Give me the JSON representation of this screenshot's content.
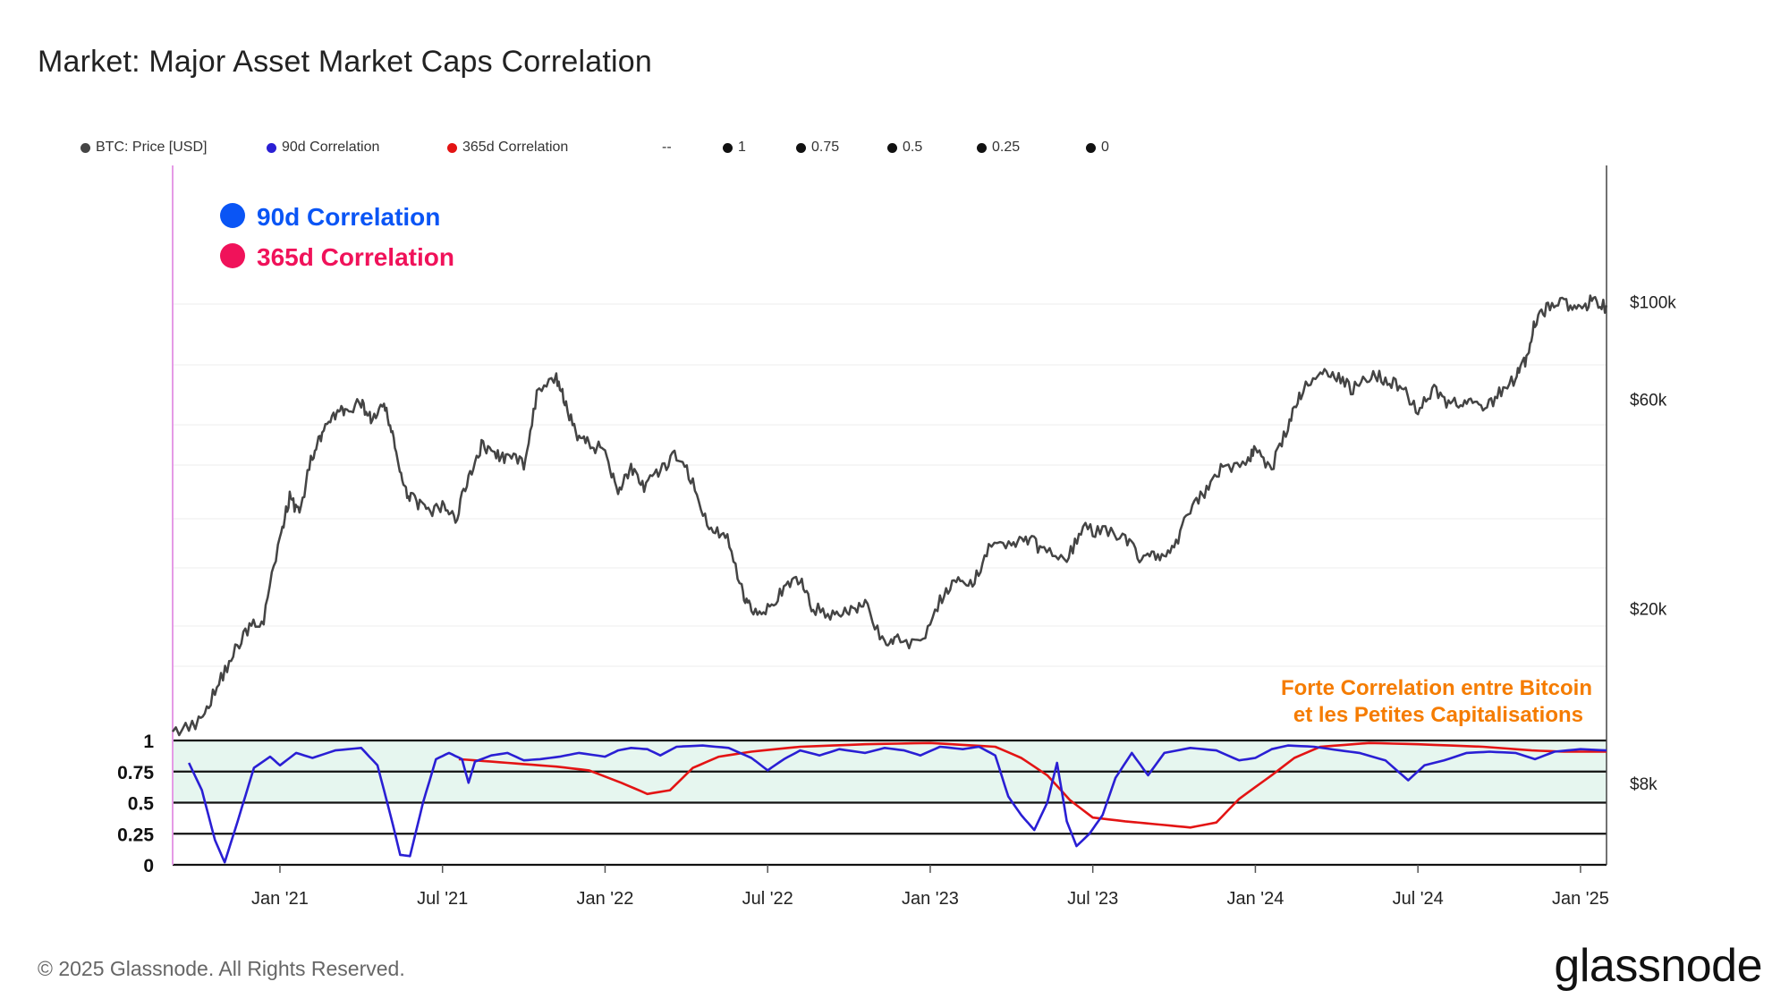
{
  "header": {
    "title": "Market: Major Asset Market Caps Correlation"
  },
  "legend": {
    "items": [
      {
        "label": "BTC: Price [USD]",
        "color": "#444444"
      },
      {
        "label": "90d Correlation",
        "color": "#2a1fd4"
      },
      {
        "label": "365d Correlation",
        "color": "#e31414"
      },
      {
        "label": "--",
        "color": ""
      },
      {
        "label": "1",
        "color": "#111111"
      },
      {
        "label": "0.75",
        "color": "#111111"
      },
      {
        "label": "0.5",
        "color": "#111111"
      },
      {
        "label": "0.25",
        "color": "#111111"
      },
      {
        "label": "0",
        "color": "#111111"
      }
    ]
  },
  "overlay_legend": [
    {
      "label": "90d Correlation",
      "color": "#0a55f5"
    },
    {
      "label": "365d Correlation",
      "color": "#f0125a"
    }
  ],
  "annotation": {
    "line1": "Forte Correlation entre Bitcoin",
    "line2": "et les Petites Capitalisations",
    "color": "#f57c00"
  },
  "footer": {
    "copyright": "© 2025 Glassnode. All Rights Reserved.",
    "brand": "glassnode"
  },
  "chart_data": {
    "type": "line",
    "title": "Market: Major Asset Market Caps Correlation",
    "x_ticks": [
      "Jan '21",
      "Jul '21",
      "Jan '22",
      "Jul '22",
      "Jan '23",
      "Jul '23",
      "Jan '24",
      "Jul '24",
      "Jan '25"
    ],
    "x_range": [
      2020.67,
      2025.08
    ],
    "y_right": {
      "scale": "log",
      "ticks": [
        "$100k",
        "$60k",
        "$20k",
        "$8k"
      ],
      "tick_values": [
        100000,
        60000,
        20000,
        8000
      ],
      "range": [
        7000,
        180000
      ]
    },
    "y_left": {
      "ticks": [
        "1",
        "0.75",
        "0.5",
        "0.25",
        "0"
      ],
      "tick_values": [
        1,
        0.75,
        0.5,
        0.25,
        0
      ],
      "range": [
        0,
        1
      ]
    },
    "high_correlation_band": [
      0.5,
      1.0
    ],
    "series": [
      {
        "name": "BTC: Price [USD]",
        "color": "#444444",
        "axis": "right",
        "points": [
          [
            2020.67,
            10500
          ],
          [
            2020.75,
            11000
          ],
          [
            2020.8,
            13000
          ],
          [
            2020.85,
            15500
          ],
          [
            2020.9,
            18000
          ],
          [
            2020.95,
            19000
          ],
          [
            2021.0,
            29000
          ],
          [
            2021.03,
            36000
          ],
          [
            2021.06,
            33000
          ],
          [
            2021.1,
            45000
          ],
          [
            2021.13,
            50000
          ],
          [
            2021.17,
            55000
          ],
          [
            2021.2,
            57000
          ],
          [
            2021.25,
            59000
          ],
          [
            2021.28,
            54000
          ],
          [
            2021.32,
            58000
          ],
          [
            2021.35,
            49000
          ],
          [
            2021.38,
            37000
          ],
          [
            2021.41,
            36000
          ],
          [
            2021.45,
            33000
          ],
          [
            2021.5,
            34000
          ],
          [
            2021.54,
            32000
          ],
          [
            2021.58,
            40000
          ],
          [
            2021.62,
            47000
          ],
          [
            2021.66,
            45000
          ],
          [
            2021.7,
            44000
          ],
          [
            2021.75,
            43000
          ],
          [
            2021.79,
            61000
          ],
          [
            2021.85,
            67000
          ],
          [
            2021.88,
            58000
          ],
          [
            2021.92,
            49000
          ],
          [
            2021.96,
            47000
          ],
          [
            2022.0,
            46000
          ],
          [
            2022.04,
            37000
          ],
          [
            2022.08,
            42000
          ],
          [
            2022.12,
            38000
          ],
          [
            2022.17,
            41000
          ],
          [
            2022.22,
            45000
          ],
          [
            2022.27,
            39000
          ],
          [
            2022.32,
            30000
          ],
          [
            2022.37,
            30000
          ],
          [
            2022.42,
            22000
          ],
          [
            2022.45,
            20000
          ],
          [
            2022.5,
            20000
          ],
          [
            2022.55,
            22000
          ],
          [
            2022.6,
            23500
          ],
          [
            2022.64,
            20000
          ],
          [
            2022.7,
            19500
          ],
          [
            2022.75,
            19500
          ],
          [
            2022.8,
            20500
          ],
          [
            2022.86,
            16500
          ],
          [
            2022.9,
            17000
          ],
          [
            2022.97,
            16600
          ],
          [
            2023.03,
            21000
          ],
          [
            2023.08,
            23000
          ],
          [
            2023.13,
            22500
          ],
          [
            2023.18,
            28000
          ],
          [
            2023.25,
            28000
          ],
          [
            2023.3,
            29000
          ],
          [
            2023.35,
            27000
          ],
          [
            2023.42,
            26000
          ],
          [
            2023.47,
            30500
          ],
          [
            2023.53,
            30000
          ],
          [
            2023.6,
            29000
          ],
          [
            2023.65,
            26000
          ],
          [
            2023.7,
            26500
          ],
          [
            2023.75,
            27000
          ],
          [
            2023.8,
            34000
          ],
          [
            2023.85,
            37000
          ],
          [
            2023.9,
            42000
          ],
          [
            2023.97,
            43000
          ],
          [
            2024.0,
            46000
          ],
          [
            2024.05,
            42000
          ],
          [
            2024.1,
            52000
          ],
          [
            2024.14,
            62000
          ],
          [
            2024.2,
            70000
          ],
          [
            2024.25,
            68000
          ],
          [
            2024.3,
            63000
          ],
          [
            2024.35,
            68000
          ],
          [
            2024.4,
            67000
          ],
          [
            2024.45,
            64000
          ],
          [
            2024.5,
            57000
          ],
          [
            2024.55,
            64000
          ],
          [
            2024.6,
            58000
          ],
          [
            2024.65,
            60000
          ],
          [
            2024.7,
            56000
          ],
          [
            2024.75,
            62000
          ],
          [
            2024.8,
            67000
          ],
          [
            2024.83,
            73000
          ],
          [
            2024.86,
            90000
          ],
          [
            2024.9,
            97000
          ],
          [
            2024.95,
            99000
          ],
          [
            2025.0,
            95000
          ],
          [
            2025.04,
            102000
          ],
          [
            2025.08,
            97000
          ]
        ]
      },
      {
        "name": "90d Correlation",
        "color": "#2a1fd4",
        "axis": "left",
        "points": [
          [
            2020.72,
            0.82
          ],
          [
            2020.76,
            0.6
          ],
          [
            2020.8,
            0.2
          ],
          [
            2020.83,
            0.02
          ],
          [
            2020.87,
            0.35
          ],
          [
            2020.92,
            0.78
          ],
          [
            2020.97,
            0.87
          ],
          [
            2021.0,
            0.8
          ],
          [
            2021.05,
            0.9
          ],
          [
            2021.1,
            0.86
          ],
          [
            2021.17,
            0.92
          ],
          [
            2021.25,
            0.94
          ],
          [
            2021.3,
            0.8
          ],
          [
            2021.34,
            0.4
          ],
          [
            2021.37,
            0.08
          ],
          [
            2021.4,
            0.07
          ],
          [
            2021.44,
            0.5
          ],
          [
            2021.48,
            0.85
          ],
          [
            2021.52,
            0.9
          ],
          [
            2021.56,
            0.85
          ],
          [
            2021.58,
            0.66
          ],
          [
            2021.6,
            0.83
          ],
          [
            2021.65,
            0.88
          ],
          [
            2021.7,
            0.9
          ],
          [
            2021.75,
            0.84
          ],
          [
            2021.8,
            0.85
          ],
          [
            2021.86,
            0.87
          ],
          [
            2021.92,
            0.9
          ],
          [
            2022.0,
            0.87
          ],
          [
            2022.04,
            0.92
          ],
          [
            2022.08,
            0.94
          ],
          [
            2022.13,
            0.93
          ],
          [
            2022.17,
            0.88
          ],
          [
            2022.22,
            0.95
          ],
          [
            2022.3,
            0.96
          ],
          [
            2022.38,
            0.94
          ],
          [
            2022.45,
            0.86
          ],
          [
            2022.5,
            0.76
          ],
          [
            2022.55,
            0.85
          ],
          [
            2022.6,
            0.92
          ],
          [
            2022.66,
            0.88
          ],
          [
            2022.72,
            0.93
          ],
          [
            2022.8,
            0.9
          ],
          [
            2022.86,
            0.94
          ],
          [
            2022.92,
            0.92
          ],
          [
            2022.97,
            0.88
          ],
          [
            2023.03,
            0.95
          ],
          [
            2023.1,
            0.93
          ],
          [
            2023.15,
            0.95
          ],
          [
            2023.2,
            0.88
          ],
          [
            2023.24,
            0.55
          ],
          [
            2023.28,
            0.4
          ],
          [
            2023.32,
            0.28
          ],
          [
            2023.36,
            0.5
          ],
          [
            2023.39,
            0.82
          ],
          [
            2023.42,
            0.35
          ],
          [
            2023.45,
            0.15
          ],
          [
            2023.49,
            0.25
          ],
          [
            2023.53,
            0.4
          ],
          [
            2023.57,
            0.7
          ],
          [
            2023.62,
            0.9
          ],
          [
            2023.67,
            0.72
          ],
          [
            2023.72,
            0.9
          ],
          [
            2023.8,
            0.94
          ],
          [
            2023.88,
            0.92
          ],
          [
            2023.95,
            0.84
          ],
          [
            2024.0,
            0.86
          ],
          [
            2024.05,
            0.93
          ],
          [
            2024.1,
            0.96
          ],
          [
            2024.18,
            0.95
          ],
          [
            2024.26,
            0.92
          ],
          [
            2024.32,
            0.9
          ],
          [
            2024.4,
            0.84
          ],
          [
            2024.47,
            0.68
          ],
          [
            2024.52,
            0.8
          ],
          [
            2024.58,
            0.84
          ],
          [
            2024.65,
            0.9
          ],
          [
            2024.72,
            0.91
          ],
          [
            2024.8,
            0.9
          ],
          [
            2024.86,
            0.85
          ],
          [
            2024.92,
            0.91
          ],
          [
            2025.0,
            0.93
          ],
          [
            2025.08,
            0.92
          ]
        ]
      },
      {
        "name": "365d Correlation",
        "color": "#e31414",
        "axis": "left",
        "points": [
          [
            2021.55,
            0.85
          ],
          [
            2021.65,
            0.83
          ],
          [
            2021.75,
            0.81
          ],
          [
            2021.85,
            0.79
          ],
          [
            2021.95,
            0.76
          ],
          [
            2022.05,
            0.66
          ],
          [
            2022.13,
            0.57
          ],
          [
            2022.2,
            0.6
          ],
          [
            2022.27,
            0.78
          ],
          [
            2022.35,
            0.87
          ],
          [
            2022.45,
            0.91
          ],
          [
            2022.6,
            0.95
          ],
          [
            2022.8,
            0.97
          ],
          [
            2023.0,
            0.98
          ],
          [
            2023.2,
            0.95
          ],
          [
            2023.28,
            0.86
          ],
          [
            2023.36,
            0.72
          ],
          [
            2023.43,
            0.52
          ],
          [
            2023.5,
            0.38
          ],
          [
            2023.6,
            0.35
          ],
          [
            2023.72,
            0.32
          ],
          [
            2023.8,
            0.3
          ],
          [
            2023.88,
            0.34
          ],
          [
            2023.95,
            0.53
          ],
          [
            2024.05,
            0.72
          ],
          [
            2024.12,
            0.86
          ],
          [
            2024.2,
            0.95
          ],
          [
            2024.35,
            0.98
          ],
          [
            2024.5,
            0.97
          ],
          [
            2024.7,
            0.95
          ],
          [
            2024.85,
            0.92
          ],
          [
            2024.95,
            0.91
          ],
          [
            2025.08,
            0.91
          ]
        ]
      }
    ]
  }
}
